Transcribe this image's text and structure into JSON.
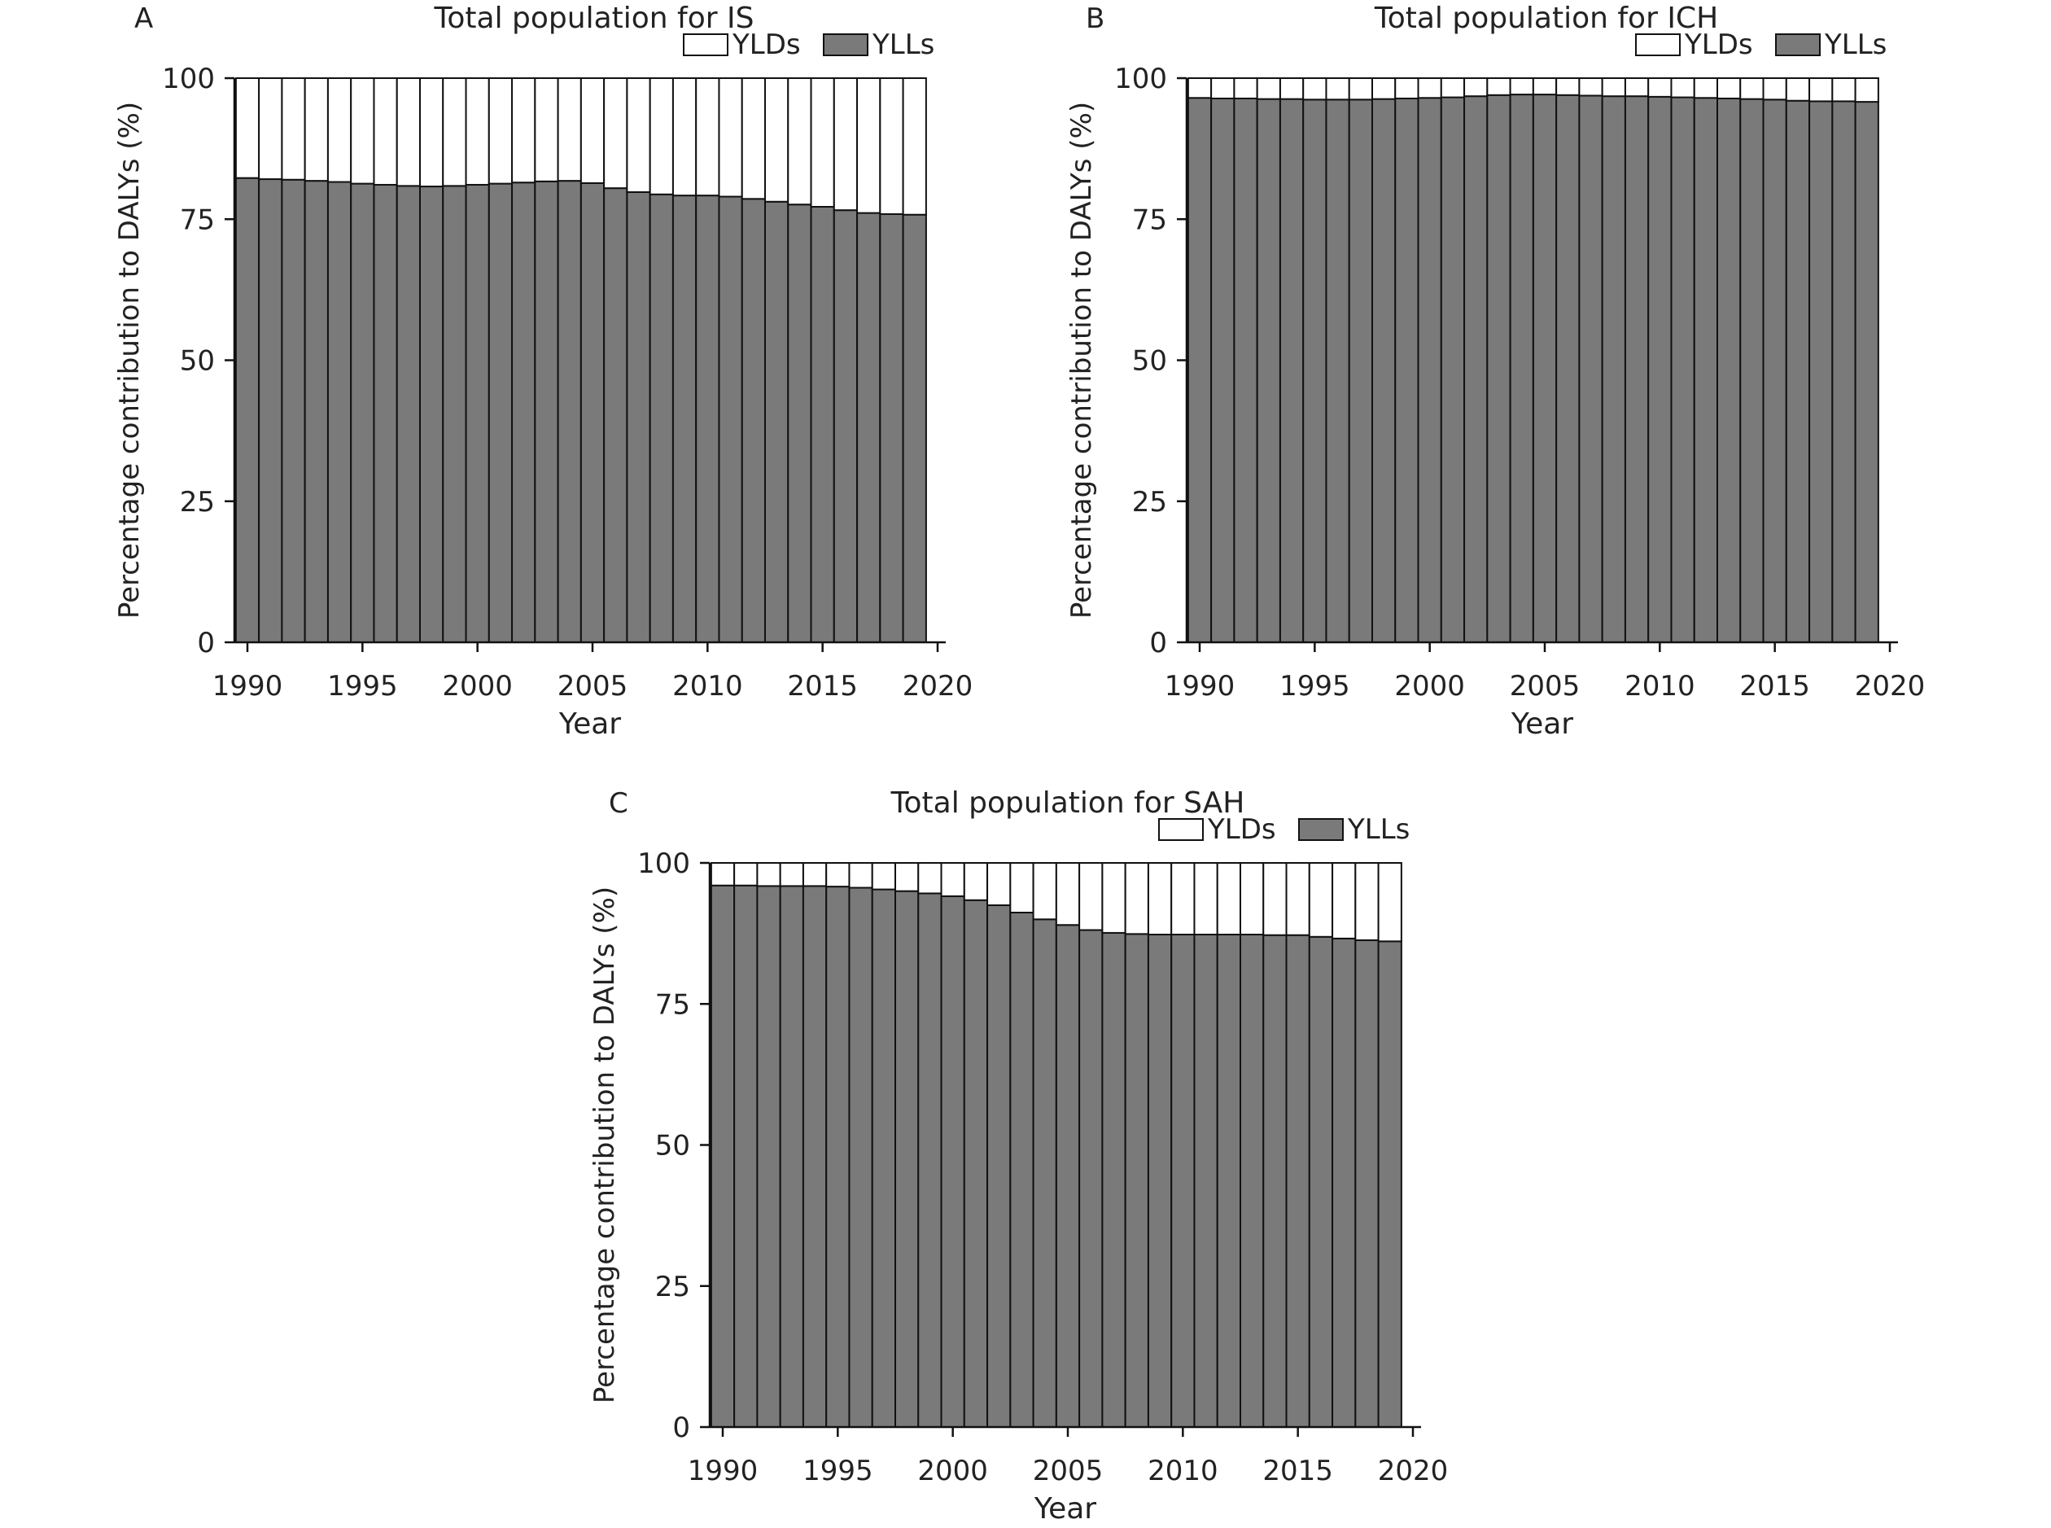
{
  "chart_data": [
    {
      "panel": "A",
      "type": "bar",
      "stacked": true,
      "title": "Total population for IS",
      "xlabel": "Year",
      "ylabel": "Percentage contribution to DALYs (%)",
      "ylim": [
        0,
        100
      ],
      "xlim": [
        1990,
        2020
      ],
      "x_ticks": [
        "1990",
        "1995",
        "2000",
        "2005",
        "2010",
        "2015",
        "2020"
      ],
      "y_ticks": [
        "0",
        "25",
        "50",
        "75",
        "100"
      ],
      "legend_position": "top-right",
      "x": [
        1990,
        1991,
        1992,
        1993,
        1994,
        1995,
        1996,
        1997,
        1998,
        1999,
        2000,
        2001,
        2002,
        2003,
        2004,
        2005,
        2006,
        2007,
        2008,
        2009,
        2010,
        2011,
        2012,
        2013,
        2014,
        2015,
        2016,
        2017,
        2018,
        2019
      ],
      "series": [
        {
          "name": "YLLs",
          "color": "#7a7a7a",
          "values": [
            82.3,
            82.1,
            82.0,
            81.8,
            81.6,
            81.3,
            81.1,
            80.9,
            80.8,
            80.9,
            81.1,
            81.3,
            81.5,
            81.7,
            81.8,
            81.4,
            80.5,
            79.8,
            79.4,
            79.2,
            79.2,
            79.0,
            78.6,
            78.1,
            77.6,
            77.2,
            76.6,
            76.1,
            75.9,
            75.8
          ]
        },
        {
          "name": "YLDs",
          "color": "#ffffff",
          "values": [
            17.7,
            17.9,
            18.0,
            18.2,
            18.4,
            18.7,
            18.9,
            19.1,
            19.2,
            19.1,
            18.9,
            18.7,
            18.5,
            18.3,
            18.2,
            18.6,
            19.5,
            20.2,
            20.6,
            20.8,
            20.8,
            21.0,
            21.4,
            21.9,
            22.4,
            22.8,
            23.4,
            23.9,
            24.1,
            24.2
          ]
        }
      ]
    },
    {
      "panel": "B",
      "type": "bar",
      "stacked": true,
      "title": "Total population for ICH",
      "xlabel": "Year",
      "ylabel": "Percentage contribution to DALYs (%)",
      "ylim": [
        0,
        100
      ],
      "xlim": [
        1990,
        2020
      ],
      "x_ticks": [
        "1990",
        "1995",
        "2000",
        "2005",
        "2010",
        "2015",
        "2020"
      ],
      "y_ticks": [
        "0",
        "25",
        "50",
        "75",
        "100"
      ],
      "legend_position": "top-right",
      "x": [
        1990,
        1991,
        1992,
        1993,
        1994,
        1995,
        1996,
        1997,
        1998,
        1999,
        2000,
        2001,
        2002,
        2003,
        2004,
        2005,
        2006,
        2007,
        2008,
        2009,
        2010,
        2011,
        2012,
        2013,
        2014,
        2015,
        2016,
        2017,
        2018,
        2019
      ],
      "series": [
        {
          "name": "YLLs",
          "color": "#7a7a7a",
          "values": [
            96.5,
            96.4,
            96.4,
            96.3,
            96.3,
            96.2,
            96.2,
            96.2,
            96.3,
            96.4,
            96.5,
            96.6,
            96.8,
            97.0,
            97.1,
            97.1,
            97.0,
            96.9,
            96.8,
            96.8,
            96.7,
            96.6,
            96.5,
            96.4,
            96.3,
            96.2,
            96.0,
            95.9,
            95.9,
            95.8
          ]
        },
        {
          "name": "YLDs",
          "color": "#ffffff",
          "values": [
            3.5,
            3.6,
            3.6,
            3.7,
            3.7,
            3.8,
            3.8,
            3.8,
            3.7,
            3.6,
            3.5,
            3.4,
            3.2,
            3.0,
            2.9,
            2.9,
            3.0,
            3.1,
            3.2,
            3.2,
            3.3,
            3.4,
            3.5,
            3.6,
            3.7,
            3.8,
            4.0,
            4.1,
            4.1,
            4.2
          ]
        }
      ]
    },
    {
      "panel": "C",
      "type": "bar",
      "stacked": true,
      "title": "Total population for SAH",
      "xlabel": "Year",
      "ylabel": "Percentage contribution to DALYs (%)",
      "ylim": [
        0,
        100
      ],
      "xlim": [
        1990,
        2020
      ],
      "x_ticks": [
        "1990",
        "1995",
        "2000",
        "2005",
        "2010",
        "2015",
        "2020"
      ],
      "y_ticks": [
        "0",
        "25",
        "50",
        "75",
        "100"
      ],
      "legend_position": "top-right",
      "x": [
        1990,
        1991,
        1992,
        1993,
        1994,
        1995,
        1996,
        1997,
        1998,
        1999,
        2000,
        2001,
        2002,
        2003,
        2004,
        2005,
        2006,
        2007,
        2008,
        2009,
        2010,
        2011,
        2012,
        2013,
        2014,
        2015,
        2016,
        2017,
        2018,
        2019
      ],
      "series": [
        {
          "name": "YLLs",
          "color": "#7a7a7a",
          "values": [
            96.0,
            96.0,
            95.9,
            95.9,
            95.9,
            95.8,
            95.6,
            95.3,
            95.0,
            94.6,
            94.1,
            93.4,
            92.5,
            91.2,
            90.0,
            89.0,
            88.1,
            87.6,
            87.4,
            87.3,
            87.3,
            87.3,
            87.3,
            87.3,
            87.2,
            87.2,
            86.9,
            86.6,
            86.3,
            86.1
          ]
        },
        {
          "name": "YLDs",
          "color": "#ffffff",
          "values": [
            4.0,
            4.0,
            4.1,
            4.1,
            4.1,
            4.2,
            4.4,
            4.7,
            5.0,
            5.4,
            5.9,
            6.6,
            7.5,
            8.8,
            10.0,
            11.0,
            11.9,
            12.4,
            12.6,
            12.7,
            12.7,
            12.7,
            12.7,
            12.7,
            12.8,
            12.8,
            13.1,
            13.4,
            13.7,
            13.9
          ]
        }
      ]
    }
  ]
}
